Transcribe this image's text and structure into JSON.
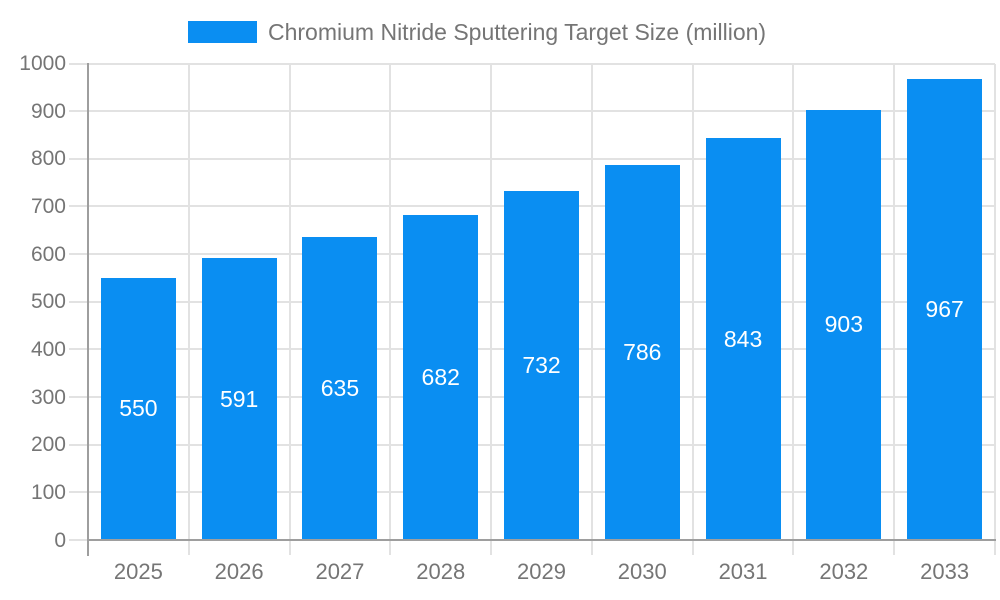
{
  "legend": {
    "label": "Chromium Nitride Sputtering Target Size (million)"
  },
  "chart_data": {
    "type": "bar",
    "title": "Chromium Nitride Sputtering Target Size (million)",
    "categories": [
      "2025",
      "2026",
      "2027",
      "2028",
      "2029",
      "2030",
      "2031",
      "2032",
      "2033"
    ],
    "values": [
      550,
      591,
      635,
      682,
      732,
      786,
      843,
      903,
      967
    ],
    "series": [
      {
        "name": "Chromium Nitride Sputtering Target Size (million)",
        "values": [
          550,
          591,
          635,
          682,
          732,
          786,
          843,
          903,
          967
        ]
      }
    ],
    "xlabel": "",
    "ylabel": "",
    "ylim": [
      0,
      1000
    ],
    "ytick_step": 100,
    "ytick_labels": [
      "0",
      "100",
      "200",
      "300",
      "400",
      "500",
      "600",
      "700",
      "800",
      "900",
      "1000"
    ],
    "grid": true,
    "legend_position": "top",
    "value_labels": "inside-middle"
  },
  "colors": {
    "bar": "#0a8ef2",
    "value_label": "#ffffff",
    "gridline": "#e2e2e2",
    "axis": "#9e9e9e",
    "text": "#757575",
    "background": "#ffffff"
  }
}
